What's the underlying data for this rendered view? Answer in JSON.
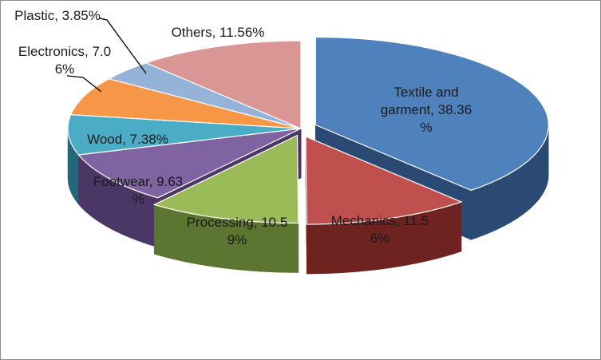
{
  "chart_data": {
    "type": "pie",
    "style": "3d-exploded",
    "legend": "none",
    "slices": [
      {
        "name": "Textile and garment",
        "value": 38.36,
        "label_lines": [
          "Textile and",
          "garment, 38.36",
          "%"
        ],
        "color": "#4f81bd",
        "side_color": "#2b4a73"
      },
      {
        "name": "Mechanics",
        "value": 11.56,
        "label_lines": [
          "Mechanics, 11.5",
          "6%"
        ],
        "color": "#c0504d",
        "side_color": "#6e2321"
      },
      {
        "name": "Processing",
        "value": 10.59,
        "label_lines": [
          "Processing, 10.5",
          "9%"
        ],
        "color": "#9bbb59",
        "side_color": "#5c7530"
      },
      {
        "name": "Footwear",
        "value": 9.63,
        "label_lines": [
          "Footwear, 9.63",
          "%"
        ],
        "color": "#8064a2",
        "side_color": "#4a3766"
      },
      {
        "name": "Wood",
        "value": 7.38,
        "label_lines": [
          "Wood, 7.38%"
        ],
        "color": "#4bacc6",
        "side_color": "#22677a"
      },
      {
        "name": "Electronics",
        "value": 7.06,
        "label_lines": [
          "Electronics, 7.0",
          "6%"
        ],
        "color": "#f79646",
        "side_color": "#a65a1a"
      },
      {
        "name": "Plastic",
        "value": 3.85,
        "label_lines": [
          "Plastic, 3.85%"
        ],
        "color": "#95b3d7",
        "side_color": "#566f8f"
      },
      {
        "name": "Others",
        "value": 11.56,
        "label_lines": [
          "Others, 11.56%"
        ],
        "color": "#d99694",
        "side_color": "#8a4f4d"
      }
    ]
  }
}
